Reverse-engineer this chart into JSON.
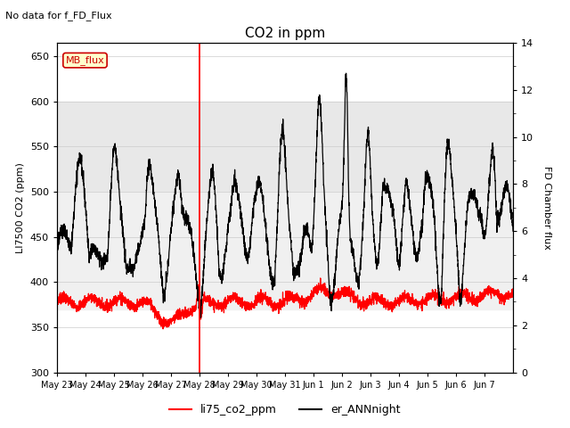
{
  "title": "CO2 in ppm",
  "top_left_text": "No data for f_FD_Flux",
  "ylabel_left": "LI7500 CO2 (ppm)",
  "ylabel_right": "FD Chamber flux",
  "ylim_left": [
    300,
    665
  ],
  "ylim_right": [
    0,
    14
  ],
  "yticks_left": [
    300,
    350,
    400,
    450,
    500,
    550,
    600,
    650
  ],
  "yticks_right": [
    0,
    2,
    4,
    6,
    8,
    10,
    12,
    14
  ],
  "xtick_labels": [
    "May 23",
    "May 24",
    "May 25",
    "May 26",
    "May 27",
    "May 28",
    "May 29",
    "May 30",
    "May 31",
    "Jun 1",
    "Jun 2",
    "Jun 3",
    "Jun 4",
    "Jun 5",
    "Jun 6",
    "Jun 7"
  ],
  "vline_color": "red",
  "vline_day": 5,
  "shaded_band": [
    575,
    500
  ],
  "shaded_band_color": "#e8e8e8",
  "legend_labels": [
    "li75_co2_ppm",
    "er_ANNnight"
  ],
  "legend_colors": [
    "red",
    "black"
  ],
  "background_color": "#ffffff",
  "mb_flux_label": "MB_flux",
  "mb_flux_facecolor": "#ffffcc",
  "mb_flux_edgecolor": "#cc0000"
}
